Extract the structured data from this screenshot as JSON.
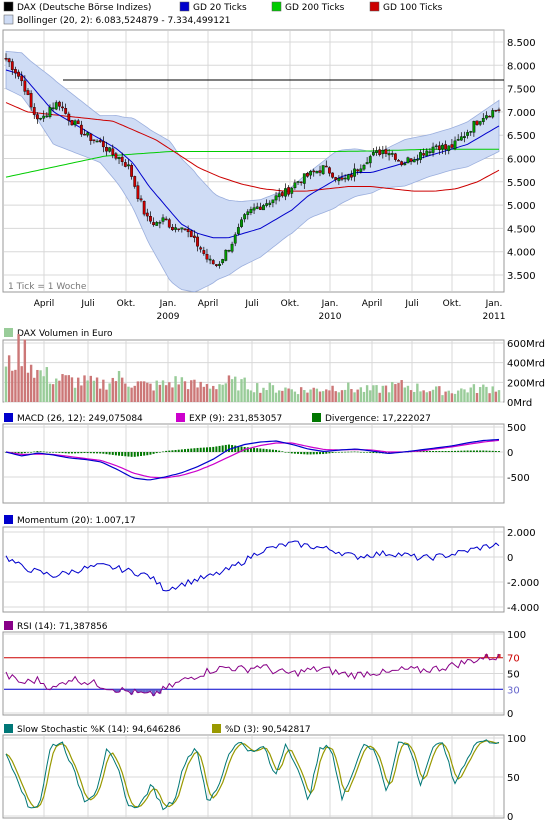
{
  "colors": {
    "dax": "#000000",
    "gd20": "#0000cc",
    "gd200": "#00cc00",
    "gd100": "#cc0000",
    "bollinger_fill": "#cfdcf5",
    "bollinger_line": "#9aaedd",
    "candle_up": "#009900",
    "candle_down": "#cc0000",
    "vol_up": "#99cc99",
    "vol_down": "#cc7777",
    "macd": "#0000cc",
    "exp": "#cc00cc",
    "divergence": "#007700",
    "momentum": "#0000cc",
    "rsi": "#880088",
    "rsi_fill": "#6666cc",
    "rsi_line70": "#cc0000",
    "rsi_line30": "#0000cc",
    "stoch_k": "#007777",
    "stoch_d": "#999900"
  },
  "legend": {
    "dax": "DAX (Deutsche Börse Indizes)",
    "gd20": "GD 20 Ticks",
    "gd200": "GD 200 Ticks",
    "gd100": "GD 100 Ticks",
    "bollinger": "Bollinger (20, 2): 6.083,524879 - 7.334,499121",
    "tick_note": "1 Tick = 1 Woche"
  },
  "x_axis": {
    "ticks": [
      "April",
      "Juli",
      "Okt.",
      "Jan.",
      "April",
      "Juli",
      "Okt.",
      "Jan.",
      "April",
      "Juli",
      "Okt.",
      "Jan."
    ],
    "years": [
      "2009",
      "2010",
      "2011"
    ]
  },
  "panels": {
    "price": {
      "yticks": [
        "8.500",
        "8.000",
        "7.500",
        "7.000",
        "6.500",
        "6.000",
        "5.500",
        "5.000",
        "4.500",
        "4.000",
        "3.500"
      ]
    },
    "volume": {
      "title": "DAX Volumen in Euro",
      "yticks": [
        "600Mrd",
        "400Mrd",
        "200Mrd",
        "0Mrd"
      ]
    },
    "macd": {
      "macd_label": "MACD (26, 12): 249,075084",
      "exp_label": "EXP (9): 231,853057",
      "div_label": "Divergence: 17,222027",
      "yticks": [
        "500",
        "0",
        "-500"
      ]
    },
    "momentum": {
      "title": "Momentum (20): 1.007,17",
      "yticks": [
        "2.000",
        "0",
        "-2.000",
        "-4.000"
      ]
    },
    "rsi": {
      "title": "RSI (14): 71,387856",
      "yticks": [
        "100",
        "50",
        "0"
      ],
      "marker70": "70",
      "marker30": "30"
    },
    "stoch": {
      "k_label": "Slow Stochastic %K (14): 94,646286",
      "d_label": "%D (3): 90,542817",
      "yticks": [
        "100",
        "50",
        "0"
      ]
    }
  },
  "chart_data": [
    {
      "type": "line",
      "title": "DAX (Deutsche Börse Indizes)",
      "x": [
        "2008-01",
        "2008-04",
        "2008-07",
        "2008-10",
        "2009-01",
        "2009-03",
        "2009-04",
        "2009-07",
        "2009-10",
        "2010-01",
        "2010-04",
        "2010-07",
        "2010-10",
        "2011-01"
      ],
      "series": [
        {
          "name": "DAX (Deutsche Börse Indizes)",
          "values": [
            8000,
            6900,
            6400,
            4500,
            4700,
            3700,
            4600,
            5300,
            5700,
            5800,
            6200,
            6150,
            6500,
            7050
          ]
        },
        {
          "name": "GD 20 Ticks",
          "values": [
            7900,
            7100,
            6500,
            5400,
            4400,
            4300,
            4200,
            4900,
            5400,
            5700,
            5900,
            6000,
            6200,
            6700
          ]
        },
        {
          "name": "GD 200 Ticks",
          "values": [
            5600,
            5900,
            6100,
            6150,
            6150,
            6150,
            6150,
            6150,
            6150,
            6150,
            6160,
            6180,
            6200,
            6200
          ]
        },
        {
          "name": "GD 100 Ticks",
          "values": [
            7000,
            6900,
            6800,
            6500,
            6000,
            5600,
            5400,
            5300,
            5350,
            5400,
            5400,
            5300,
            5400,
            5750
          ]
        }
      ],
      "ylim": [
        3300,
        8800
      ]
    },
    {
      "type": "bar",
      "title": "DAX Volumen in Euro",
      "ylim": [
        0,
        600
      ]
    },
    {
      "type": "line",
      "title": "MACD (26, 12): 249,075084",
      "series": [
        {
          "name": "MACD (26, 12)",
          "values": [
            0,
            -100,
            -50,
            -200,
            -500,
            -350,
            -100,
            200,
            100,
            50,
            100,
            -50,
            100,
            250
          ]
        },
        {
          "name": "EXP (9)",
          "values": [
            0,
            -50,
            -60,
            -100,
            -380,
            -420,
            -200,
            100,
            150,
            80,
            80,
            0,
            50,
            230
          ]
        }
      ],
      "ylim": [
        -700,
        500
      ]
    },
    {
      "type": "line",
      "title": "Momentum (20): 1.007,17",
      "series": [
        {
          "name": "Momentum (20)",
          "values": [
            0,
            -1500,
            -800,
            -1000,
            -2500,
            -1500,
            -500,
            500,
            1000,
            0,
            500,
            -200,
            200,
            1007
          ]
        }
      ],
      "ylim": [
        -4000,
        2000
      ]
    },
    {
      "type": "line",
      "title": "RSI (14): 71,387856",
      "series": [
        {
          "name": "RSI (14)",
          "values": [
            40,
            30,
            42,
            32,
            30,
            22,
            45,
            55,
            60,
            50,
            58,
            48,
            55,
            71
          ]
        }
      ],
      "ylim": [
        0,
        100
      ]
    },
    {
      "type": "line",
      "title": "Slow Stochastic %K (14): 94,646286",
      "series": [
        {
          "name": "Slow Stochastic %K (14)",
          "values": [
            80,
            15,
            85,
            20,
            70,
            10,
            90,
            95,
            40,
            85,
            25,
            90,
            20,
            95
          ]
        },
        {
          "name": "%D (3)",
          "values": [
            75,
            20,
            80,
            25,
            65,
            15,
            85,
            90,
            45,
            80,
            30,
            85,
            25,
            91
          ]
        }
      ],
      "ylim": [
        0,
        100
      ]
    }
  ]
}
